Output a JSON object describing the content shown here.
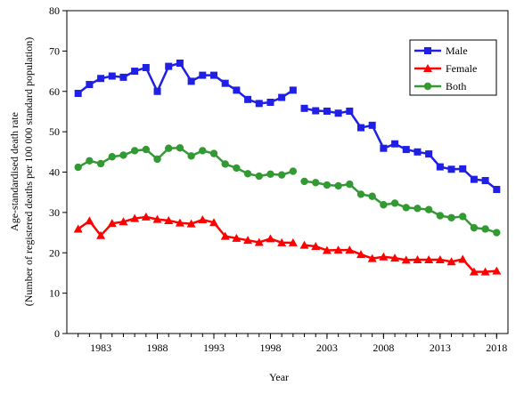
{
  "chart_data": {
    "type": "line",
    "title": "",
    "xlabel": "Year",
    "ylabel_line1": "Age-standardised death rate",
    "ylabel_line2": "(Number of registered deaths per 100 000 standard population)",
    "xlim": [
      1980,
      2019
    ],
    "ylim": [
      0,
      80
    ],
    "y_ticks": [
      "0",
      "10",
      "20",
      "30",
      "40",
      "50",
      "60",
      "70",
      "80"
    ],
    "x_ticks": [
      "1983",
      "1988",
      "1993",
      "1998",
      "2003",
      "2008",
      "2013",
      "2018"
    ],
    "legend_position": "top-right",
    "grid": false,
    "series": [
      {
        "name": "Male",
        "color": "#1f1fe6",
        "marker": "square",
        "x": [
          1981,
          1982,
          1983,
          1984,
          1985,
          1986,
          1987,
          1988,
          1989,
          1990,
          1991,
          1992,
          1993,
          1994,
          1995,
          1996,
          1997,
          1998,
          1999,
          2000,
          2001,
          2002,
          2003,
          2004,
          2005,
          2006,
          2007,
          2008,
          2009,
          2010,
          2011,
          2012,
          2013,
          2014,
          2015,
          2016,
          2017,
          2018
        ],
        "y": [
          59.5,
          61.7,
          63.2,
          63.8,
          63.5,
          65.0,
          65.9,
          60.0,
          66.2,
          67.0,
          62.5,
          64.0,
          64.0,
          62.0,
          60.3,
          58.0,
          57.0,
          57.3,
          58.5,
          60.3,
          55.8,
          55.2,
          55.1,
          54.6,
          55.1,
          51.0,
          51.6,
          45.9,
          47.0,
          45.6,
          45.0,
          44.5,
          41.3,
          40.7,
          40.8,
          38.2,
          37.9,
          35.7
        ],
        "segments": [
          [
            0,
            19
          ],
          [
            20,
            37
          ]
        ]
      },
      {
        "name": "Female",
        "color": "#ff0000",
        "marker": "triangle",
        "x": [
          1981,
          1982,
          1983,
          1984,
          1985,
          1986,
          1987,
          1988,
          1989,
          1990,
          1991,
          1992,
          1993,
          1994,
          1995,
          1996,
          1997,
          1998,
          1999,
          2000,
          2001,
          2002,
          2003,
          2004,
          2005,
          2006,
          2007,
          2008,
          2009,
          2010,
          2011,
          2012,
          2013,
          2014,
          2015,
          2016,
          2017,
          2018
        ],
        "y": [
          25.9,
          27.9,
          24.3,
          27.3,
          27.7,
          28.5,
          28.9,
          28.3,
          28.0,
          27.4,
          27.2,
          28.2,
          27.5,
          24.1,
          23.6,
          23.1,
          22.6,
          23.5,
          22.5,
          22.5,
          21.9,
          21.6,
          20.6,
          20.7,
          20.7,
          19.6,
          18.6,
          19.0,
          18.7,
          18.2,
          18.3,
          18.3,
          18.3,
          17.8,
          18.4,
          15.3,
          15.3,
          15.5
        ],
        "segments": [
          [
            0,
            19
          ],
          [
            20,
            37
          ]
        ]
      },
      {
        "name": "Both",
        "color": "#339933",
        "marker": "circle",
        "x": [
          1981,
          1982,
          1983,
          1984,
          1985,
          1986,
          1987,
          1988,
          1989,
          1990,
          1991,
          1992,
          1993,
          1994,
          1995,
          1996,
          1997,
          1998,
          1999,
          2000,
          2001,
          2002,
          2003,
          2004,
          2005,
          2006,
          2007,
          2008,
          2009,
          2010,
          2011,
          2012,
          2013,
          2014,
          2015,
          2016,
          2017,
          2018
        ],
        "y": [
          41.2,
          42.8,
          42.1,
          43.8,
          44.2,
          45.3,
          45.6,
          43.2,
          45.9,
          46.0,
          44.0,
          45.3,
          44.6,
          42.0,
          41.0,
          39.6,
          39.0,
          39.5,
          39.3,
          40.2,
          37.7,
          37.4,
          36.8,
          36.6,
          37.0,
          34.5,
          34.0,
          31.9,
          32.3,
          31.2,
          31.0,
          30.7,
          29.2,
          28.7,
          29.0,
          26.2,
          25.9,
          25.0
        ],
        "segments": [
          [
            0,
            19
          ],
          [
            20,
            37
          ]
        ]
      }
    ]
  }
}
